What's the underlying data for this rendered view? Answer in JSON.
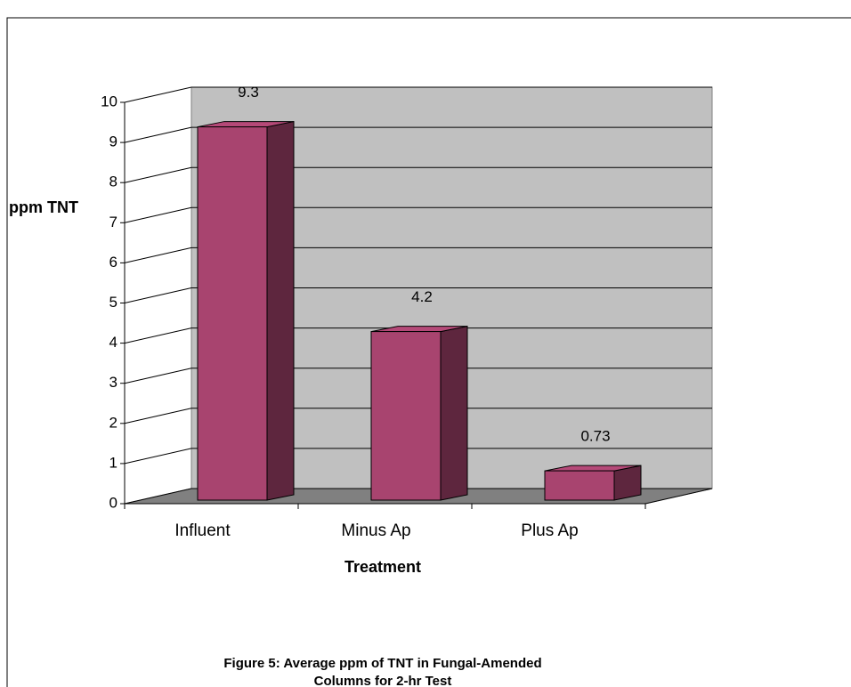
{
  "chart_data": {
    "type": "bar",
    "ylabel": "ppm TNT",
    "xlabel": "Treatment",
    "caption": [
      "Figure 5: Average ppm of TNT in Fungal-Amended",
      "Columns for 2-hr Test"
    ],
    "categories": [
      "Influent",
      "Minus Ap",
      "Plus Ap"
    ],
    "values": [
      9.3,
      4.2,
      0.73
    ],
    "color": "#a8446f",
    "ylim": [
      0,
      10
    ],
    "yticks": [
      0,
      1,
      2,
      3,
      4,
      5,
      6,
      7,
      8,
      9,
      10
    ],
    "grid": true
  }
}
